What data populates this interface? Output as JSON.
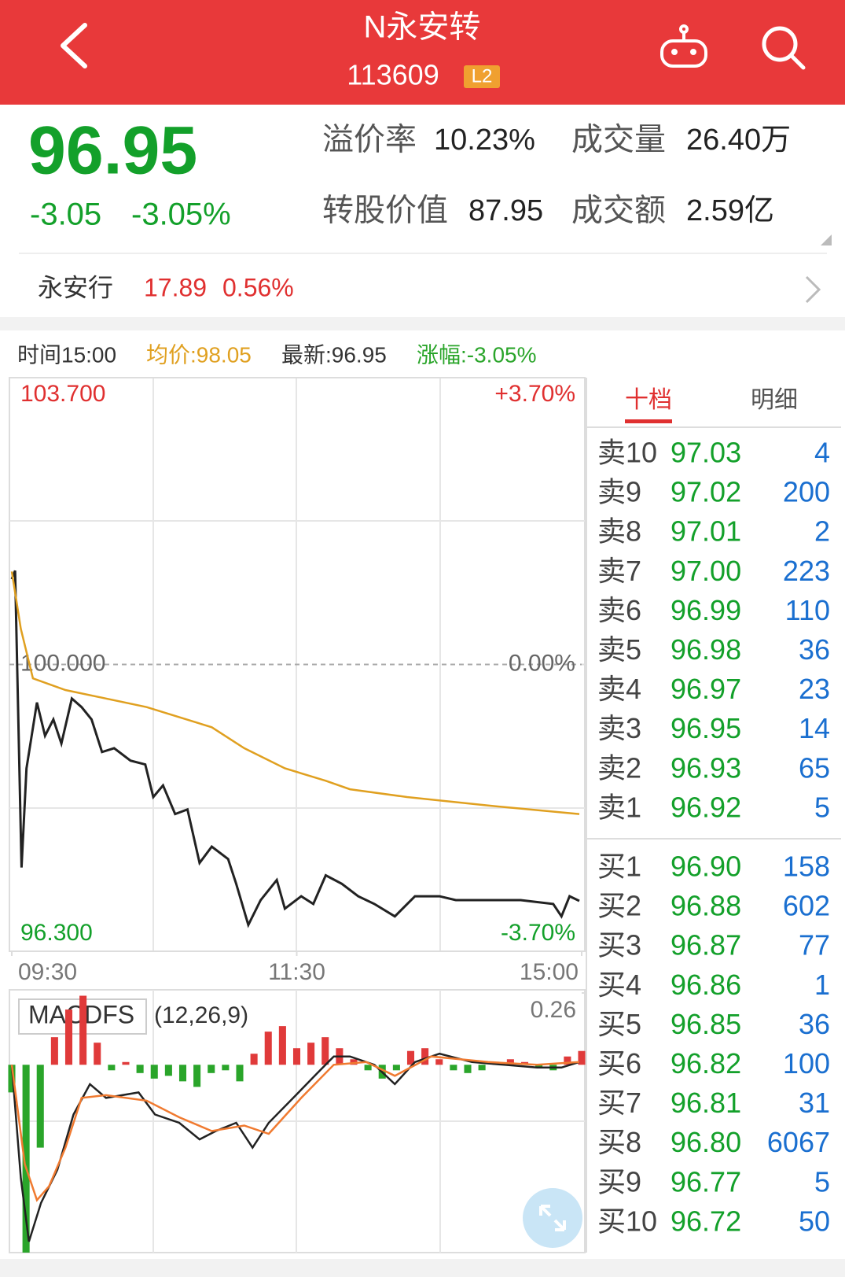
{
  "header": {
    "title": "N永安转",
    "code": "113609",
    "badge": "L2"
  },
  "quote": {
    "price": "96.95",
    "change": "-3.05",
    "change_pct": "-3.05%",
    "stats": [
      {
        "label": "溢价率",
        "value": "10.23%"
      },
      {
        "label": "成交量",
        "value": "26.40万"
      },
      {
        "label": "转股价值",
        "value": "87.95"
      },
      {
        "label": "成交额",
        "value": "2.59亿"
      }
    ]
  },
  "stock": {
    "name": "永安行",
    "price": "17.89",
    "change_pct": "0.56%"
  },
  "info_bar": [
    "时间15:00",
    "均价:98.05",
    "最新:96.95",
    "涨幅:-3.05%"
  ],
  "chart_data": [
    {
      "type": "line",
      "xlim": [
        0,
        240
      ],
      "xticks": [
        {
          "value": 0,
          "label": "09:30"
        },
        {
          "value": 120,
          "label": "11:30"
        },
        {
          "value": 240,
          "label": "15:00"
        }
      ],
      "ylim": [
        96.3,
        103.7
      ],
      "yticks": [
        {
          "value": 103.7,
          "label": "103.700"
        },
        {
          "value": 100,
          "label": "100.000"
        },
        {
          "value": 96.3,
          "label": "96.300"
        }
      ],
      "y2lim": [
        -3.7,
        3.7
      ],
      "y2ticks": [
        {
          "value": 3.7,
          "label": "+3.70%"
        },
        {
          "value": 0,
          "label": "0.00%"
        },
        {
          "value": -3.7,
          "label": "-3.70%"
        }
      ],
      "series": [
        {
          "color": "#222222",
          "x": [
            0,
            1.4,
            4.1,
            6.2,
            10.6,
            14.0,
            17.5,
            20.9,
            25.3,
            29.4,
            33.6,
            38.0,
            43.1,
            50.0,
            56.2,
            59.6,
            63.7,
            68.8,
            74.0,
            79.1,
            84.2,
            91.1,
            94.5,
            99.6,
            104.8,
            111.6,
            115.0,
            121.9,
            127.0,
            132.2,
            139.0,
            145.9,
            152.7,
            161.3,
            169.8,
            180.1,
            187.0,
            200.6,
            214.3,
            228.0,
            231.5,
            234.9,
            239.0
          ],
          "values": [
            101.1,
            101.21,
            97.38,
            98.66,
            99.51,
            99.08,
            99.29,
            98.98,
            99.56,
            99.45,
            99.29,
            98.87,
            98.92,
            98.76,
            98.71,
            98.29,
            98.44,
            98.07,
            98.13,
            97.44,
            97.65,
            97.49,
            97.17,
            96.64,
            96.96,
            97.22,
            96.85,
            97.01,
            96.91,
            97.28,
            97.17,
            97.01,
            96.91,
            96.75,
            97.01,
            97.01,
            96.96,
            96.96,
            96.96,
            96.91,
            96.75,
            97.01,
            96.95
          ]
        },
        {
          "color": "#e0a020",
          "x": [
            0,
            3.8,
            8.9,
            22.6,
            39.7,
            56.8,
            84.2,
            97.9,
            115.0,
            132.2,
            142.4,
            166.4,
            200.6,
            239.0
          ],
          "values": [
            101.2,
            100.46,
            99.82,
            99.67,
            99.56,
            99.45,
            99.19,
            98.92,
            98.66,
            98.5,
            98.39,
            98.29,
            98.18,
            98.07
          ]
        }
      ]
    },
    {
      "type": "macd",
      "label": "MACDFS",
      "params": "(12,26,9)",
      "xlim": [
        0,
        240
      ],
      "ylim": [
        -0.68,
        0.26
      ],
      "yticks": [
        0.26
      ],
      "up_color": "#e03a3a",
      "down_color": "#2aa52a",
      "histogram": {
        "x": [
          0,
          6,
          12,
          18,
          24,
          30,
          36,
          42,
          48,
          54,
          60,
          66,
          72,
          78,
          84,
          90,
          96,
          102,
          108,
          114,
          120,
          126,
          132,
          138,
          144,
          150,
          156,
          162,
          168,
          174,
          180,
          186,
          192,
          198,
          204,
          210,
          216,
          222,
          228,
          234,
          240
        ],
        "values": [
          -0.1,
          -0.68,
          -0.3,
          0.1,
          0.2,
          0.25,
          0.08,
          -0.02,
          0.01,
          -0.03,
          -0.05,
          -0.04,
          -0.06,
          -0.08,
          -0.03,
          -0.02,
          -0.06,
          0.04,
          0.12,
          0.14,
          0.06,
          0.08,
          0.1,
          0.06,
          0.02,
          -0.02,
          -0.05,
          -0.02,
          0.05,
          0.06,
          0.02,
          -0.02,
          -0.03,
          -0.02,
          0.01,
          0.02,
          0.01,
          -0.01,
          -0.02,
          0.03,
          0.05
        ]
      },
      "series": [
        {
          "color": "#222222",
          "x": [
            0,
            3.8,
            7.2,
            12.3,
            19.2,
            26.0,
            32.9,
            39.7,
            53.4,
            60.3,
            70.5,
            79.1,
            85.9,
            94.5,
            101.4,
            108.2,
            118.5,
            128.7,
            135.6,
            142.4,
            152.7,
            161.3,
            169.8,
            180.1,
            193.8,
            207.5,
            221.2,
            231.5,
            239.0
          ],
          "values": [
            0,
            -0.41,
            -0.64,
            -0.5,
            -0.38,
            -0.18,
            -0.07,
            -0.12,
            -0.1,
            -0.18,
            -0.21,
            -0.27,
            -0.24,
            -0.21,
            -0.3,
            -0.21,
            -0.12,
            -0.03,
            0.03,
            0.03,
            0,
            -0.07,
            0.01,
            0.04,
            0.01,
            0,
            -0.01,
            -0.01,
            0.01
          ]
        },
        {
          "color": "#f07a30",
          "x": [
            0,
            5.5,
            10.6,
            15.7,
            22.6,
            29.4,
            39.7,
            56.8,
            70.5,
            84.2,
            97.9,
            108.2,
            121.9,
            135.6,
            149.3,
            161.3,
            176.7,
            200.6,
            221.2,
            239.0
          ],
          "values": [
            0,
            -0.36,
            -0.49,
            -0.44,
            -0.3,
            -0.12,
            -0.11,
            -0.13,
            -0.19,
            -0.24,
            -0.22,
            -0.25,
            -0.12,
            0,
            0.01,
            -0.04,
            0.03,
            0.01,
            0,
            0.01
          ]
        }
      ]
    }
  ],
  "order_book": {
    "tabs": [
      "十档",
      "明细"
    ],
    "sell": [
      {
        "label": "卖10",
        "price": "97.03",
        "volume": "4"
      },
      {
        "label": "卖9",
        "price": "97.02",
        "volume": "200"
      },
      {
        "label": "卖8",
        "price": "97.01",
        "volume": "2"
      },
      {
        "label": "卖7",
        "price": "97.00",
        "volume": "223"
      },
      {
        "label": "卖6",
        "price": "96.99",
        "volume": "110"
      },
      {
        "label": "卖5",
        "price": "96.98",
        "volume": "36"
      },
      {
        "label": "卖4",
        "price": "96.97",
        "volume": "23"
      },
      {
        "label": "卖3",
        "price": "96.95",
        "volume": "14"
      },
      {
        "label": "卖2",
        "price": "96.93",
        "volume": "65"
      },
      {
        "label": "卖1",
        "price": "96.92",
        "volume": "5"
      }
    ],
    "buy": [
      {
        "label": "买1",
        "price": "96.90",
        "volume": "158"
      },
      {
        "label": "买2",
        "price": "96.88",
        "volume": "602"
      },
      {
        "label": "买3",
        "price": "96.87",
        "volume": "77"
      },
      {
        "label": "买4",
        "price": "96.86",
        "volume": "1"
      },
      {
        "label": "买5",
        "price": "96.85",
        "volume": "36"
      },
      {
        "label": "买6",
        "price": "96.82",
        "volume": "100"
      },
      {
        "label": "买7",
        "price": "96.81",
        "volume": "31"
      },
      {
        "label": "买8",
        "price": "96.80",
        "volume": "6067"
      },
      {
        "label": "买9",
        "price": "96.77",
        "volume": "5"
      },
      {
        "label": "买10",
        "price": "96.72",
        "volume": "50"
      }
    ]
  }
}
